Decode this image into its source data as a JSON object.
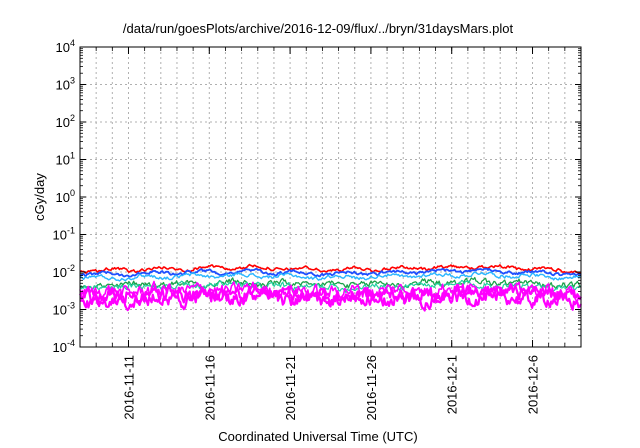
{
  "chart_data": {
    "type": "line",
    "title": "/data/run/goesPlots/archive/2016-12-09/flux/../bryn/31daysMars.plot",
    "xlabel": "Coordinated Universal Time (UTC)",
    "ylabel": "cGy/day",
    "yscale": "log",
    "ylim": [
      0.0001,
      10000
    ],
    "y_ticks": [
      {
        "value": 0.0001,
        "base": "10",
        "exp": "-4"
      },
      {
        "value": 0.001,
        "base": "10",
        "exp": "-3"
      },
      {
        "value": 0.01,
        "base": "10",
        "exp": "-2"
      },
      {
        "value": 0.1,
        "base": "10",
        "exp": "-1"
      },
      {
        "value": 1,
        "base": "10",
        "exp": "0"
      },
      {
        "value": 10,
        "base": "10",
        "exp": "1"
      },
      {
        "value": 100,
        "base": "10",
        "exp": "2"
      },
      {
        "value": 1000,
        "base": "10",
        "exp": "3"
      },
      {
        "value": 10000,
        "base": "10",
        "exp": "4"
      }
    ],
    "xlim": [
      "2016-11-08",
      "2016-12-09"
    ],
    "x_ticks": [
      "2016-11-11",
      "2016-11-16",
      "2016-11-21",
      "2016-11-26",
      "2016-12-1",
      "2016-12-6"
    ],
    "x_tick_dates": [
      "2016-11-11",
      "2016-11-16",
      "2016-11-21",
      "2016-11-26",
      "2016-12-01",
      "2016-12-06"
    ],
    "grid": true,
    "legend": "none",
    "series": [
      {
        "color": "#ff0000",
        "dates": [
          "2016-11-08",
          "2016-11-13",
          "2016-11-18",
          "2016-11-23",
          "2016-11-28",
          "2016-12-03",
          "2016-12-09"
        ],
        "values": [
          0.0105,
          0.012,
          0.0135,
          0.0115,
          0.0125,
          0.014,
          0.0105
        ],
        "noise": 0.035,
        "width": 1.6
      },
      {
        "color": "#1e4fff",
        "dates": [
          "2016-11-08",
          "2016-11-13",
          "2016-11-18",
          "2016-11-23",
          "2016-11-28",
          "2016-12-03",
          "2016-12-09"
        ],
        "values": [
          0.0085,
          0.0095,
          0.0105,
          0.009,
          0.0098,
          0.011,
          0.0085
        ],
        "noise": 0.035,
        "width": 1.8
      },
      {
        "color": "#2ab6ff",
        "dates": [
          "2016-11-08",
          "2016-11-13",
          "2016-11-18",
          "2016-11-23",
          "2016-11-28",
          "2016-12-03",
          "2016-12-09"
        ],
        "values": [
          0.0068,
          0.0075,
          0.0082,
          0.0072,
          0.0078,
          0.0088,
          0.0068
        ],
        "noise": 0.04,
        "width": 1.4
      },
      {
        "color": "#1aa34a",
        "dates": [
          "2016-11-08",
          "2016-11-13",
          "2016-11-18",
          "2016-11-23",
          "2016-11-28",
          "2016-12-03",
          "2016-12-09"
        ],
        "values": [
          0.0042,
          0.0048,
          0.0052,
          0.0045,
          0.0049,
          0.0056,
          0.0042
        ],
        "noise": 0.07,
        "width": 1.3
      },
      {
        "color": "#20d0a0",
        "dates": [
          "2016-11-08",
          "2016-11-13",
          "2016-11-18",
          "2016-11-23",
          "2016-11-28",
          "2016-12-03",
          "2016-12-09"
        ],
        "values": [
          0.0036,
          0.0041,
          0.0045,
          0.0039,
          0.0042,
          0.0048,
          0.0036
        ],
        "noise": 0.07,
        "width": 1.2
      },
      {
        "color": "#ff00ff",
        "dates": [
          "2016-11-08",
          "2016-11-13",
          "2016-11-18",
          "2016-11-23",
          "2016-11-28",
          "2016-12-03",
          "2016-12-09"
        ],
        "values": [
          0.0022,
          0.0026,
          0.0028,
          0.0024,
          0.0026,
          0.003,
          0.0021
        ],
        "noise": 0.16,
        "width": 2.2
      },
      {
        "color": "#ff00ff",
        "dates": [
          "2016-11-08",
          "2016-11-13",
          "2016-11-18",
          "2016-11-23",
          "2016-11-28",
          "2016-12-03",
          "2016-12-09"
        ],
        "values": [
          0.0016,
          0.0019,
          0.0021,
          0.0017,
          0.0019,
          0.0022,
          0.0016
        ],
        "noise": 0.16,
        "width": 2.2
      },
      {
        "color": "#ff00ff",
        "dates": [
          "2016-11-08",
          "2016-11-13",
          "2016-11-18",
          "2016-11-23",
          "2016-11-28",
          "2016-12-03",
          "2016-12-09"
        ],
        "values": [
          0.0028,
          0.0032,
          0.0035,
          0.003,
          0.0033,
          0.0037,
          0.0027
        ],
        "noise": 0.14,
        "width": 1.6
      }
    ]
  }
}
